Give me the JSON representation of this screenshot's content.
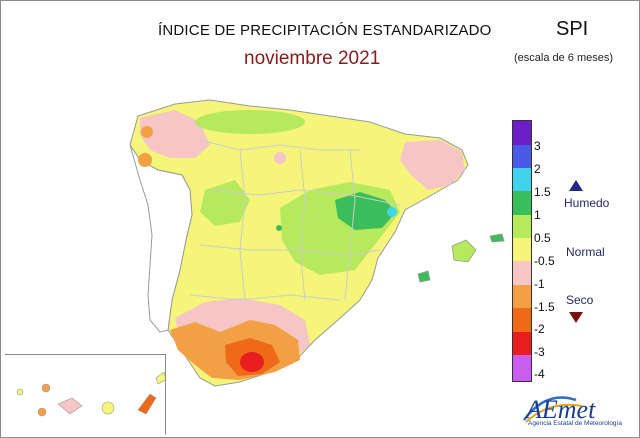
{
  "header": {
    "title": "ÍNDICE DE PRECIPITACIÓN ESTANDARIZADO",
    "period": "noviembre 2021",
    "index_name": "SPI",
    "scale_note": "(escala de 6 meses)"
  },
  "legend": {
    "ticks": [
      "3",
      "2",
      "1.5",
      "1",
      "0.5",
      "-0.5",
      "-1",
      "-1.5",
      "-2",
      "-3",
      "-4"
    ],
    "categories": {
      "wet": "Humedo",
      "normal": "Normal",
      "dry": "Seco"
    },
    "colors": {
      "extreme_wet": "#6a1fc6",
      "very_wet": "#4a5ae8",
      "moderate_wet": "#3fd3ec",
      "wet": "#3cbd5b",
      "slightly_wet": "#b6ea5c",
      "normal": "#f5f57a",
      "slightly_dry": "#f6c6c6",
      "dry": "#f3a044",
      "moderate_dry": "#ee6a19",
      "very_dry": "#e81d1d",
      "extreme_dry": "#c85df0"
    }
  },
  "logo": {
    "name": "AEmet",
    "caption": "Agencia Estatal de Meteorología"
  }
}
